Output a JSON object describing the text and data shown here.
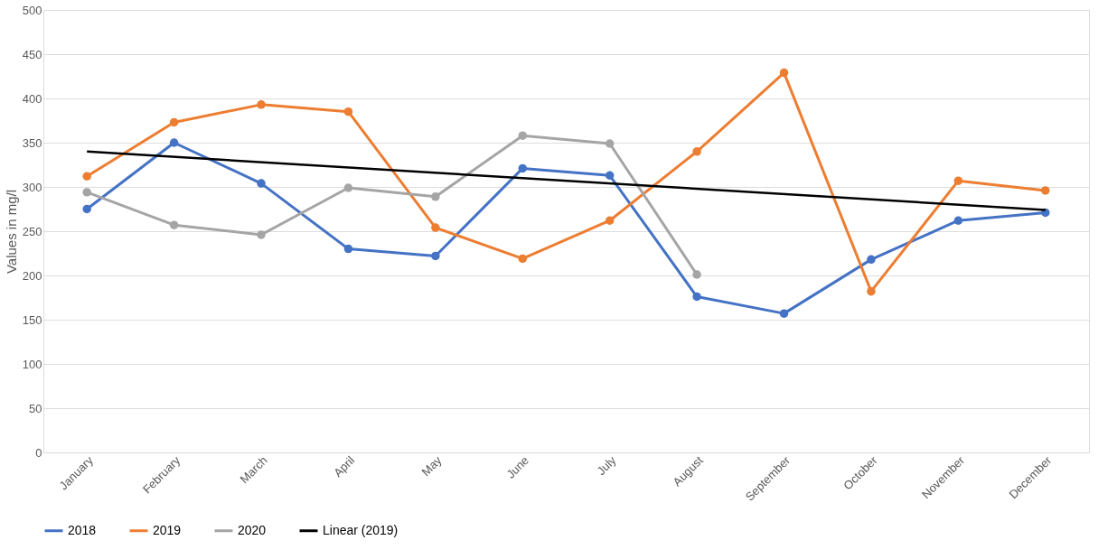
{
  "chart_data": {
    "type": "line",
    "ylabel": "Values in mg/l",
    "categories": [
      "January",
      "February",
      "March",
      "April",
      "May",
      "June",
      "July",
      "August",
      "September",
      "October",
      "November",
      "December"
    ],
    "series": [
      {
        "name": "2018",
        "color": "#4472c4",
        "values": [
          275,
          350,
          304,
          230,
          222,
          321,
          313,
          176,
          157,
          218,
          262,
          271
        ]
      },
      {
        "name": "2019",
        "color": "#ed7d31",
        "values": [
          312,
          373,
          393,
          385,
          254,
          219,
          262,
          340,
          429,
          182,
          307,
          296
        ]
      },
      {
        "name": "2020",
        "color": "#a5a5a5",
        "values": [
          294,
          257,
          246,
          299,
          289,
          358,
          349,
          201,
          null,
          null,
          null,
          null
        ]
      },
      {
        "name": "Linear (2019)",
        "color": "#000000",
        "type": "line",
        "marker": "none",
        "x": [
          "January",
          "December"
        ],
        "values": [
          340,
          274
        ]
      }
    ],
    "ylim": [
      0,
      500
    ],
    "yticks": [
      0,
      50,
      100,
      150,
      200,
      250,
      300,
      350,
      400,
      450,
      500
    ],
    "grid": "y",
    "legend": "bottom",
    "marker": "circle",
    "line_style": "solid"
  }
}
